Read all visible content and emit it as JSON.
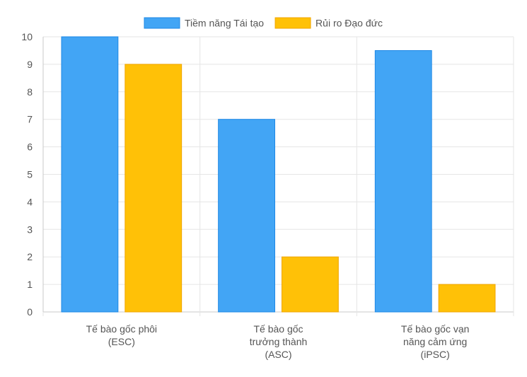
{
  "chart_data": {
    "type": "bar",
    "categories": [
      [
        "Tế bào gốc phôi",
        "(ESC)"
      ],
      [
        "Tế bào gốc",
        "trưởng thành",
        "(ASC)"
      ],
      [
        "Tế bào gốc vạn",
        "năng cảm ứng",
        "(iPSC)"
      ]
    ],
    "series": [
      {
        "name": "Tiềm năng Tái tạo",
        "values": [
          10,
          7,
          9.5
        ],
        "color": "#42a5f5",
        "stroke": "#1e88e5"
      },
      {
        "name": "Rủi ro Đạo đức",
        "values": [
          9,
          2,
          1
        ],
        "color": "#ffc107",
        "stroke": "#f0a500"
      }
    ],
    "ylim": [
      0,
      10
    ],
    "yticks": [
      "0",
      "1",
      "2",
      "3",
      "4",
      "5",
      "6",
      "7",
      "8",
      "9",
      "10"
    ],
    "grid": true,
    "legend_position": "top",
    "colors": {
      "grid": "#e5e5e5",
      "axis": "#c8c8c8",
      "text": "#555555"
    }
  }
}
